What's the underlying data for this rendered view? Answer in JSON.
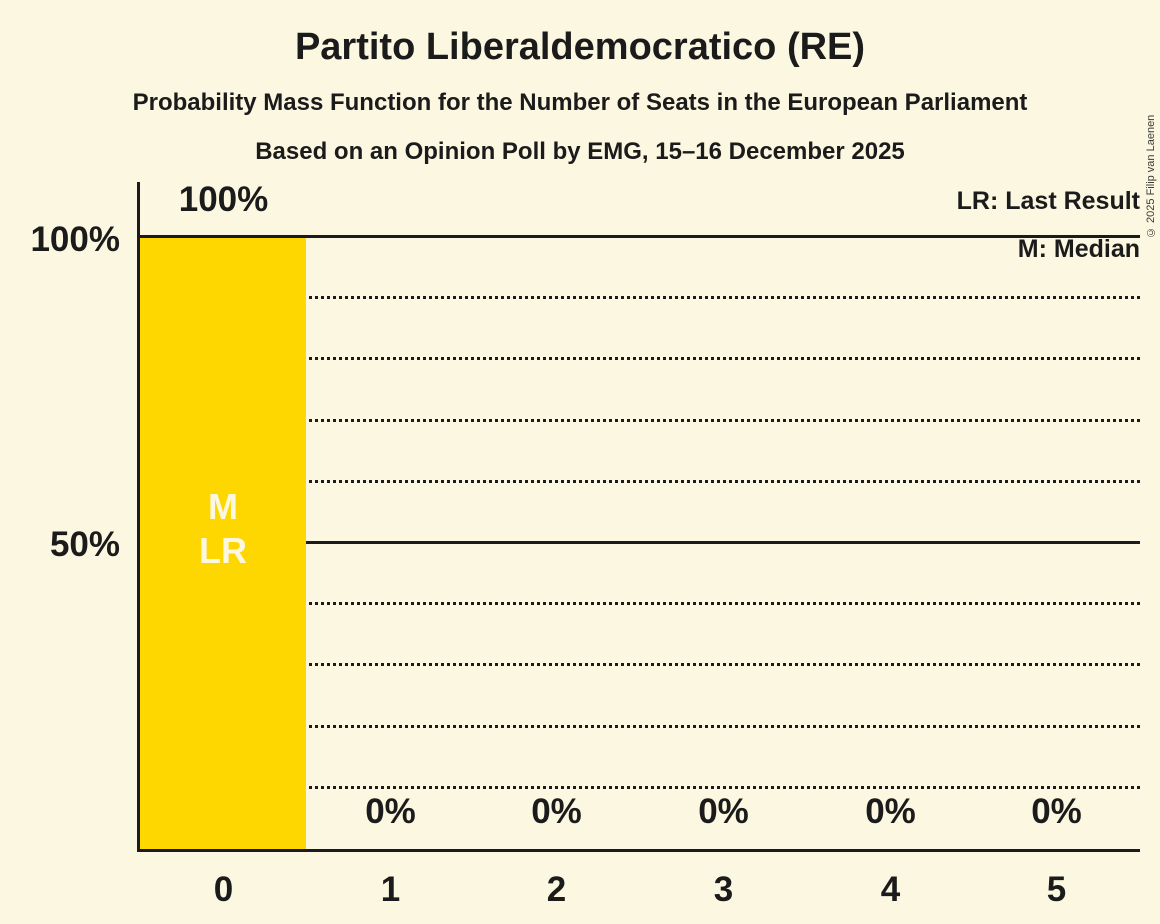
{
  "copyright": "© 2025 Filip van Laenen",
  "chart_data": {
    "type": "bar",
    "title": "Partito Liberaldemocratico (RE)",
    "subtitle": "Probability Mass Function for the Number of Seats in the European Parliament",
    "poll_info": "Based on an Opinion Poll by EMG, 15–16 December 2025",
    "categories": [
      "0",
      "1",
      "2",
      "3",
      "4",
      "5"
    ],
    "values": [
      100,
      0,
      0,
      0,
      0,
      0
    ],
    "value_labels": [
      "100%",
      "0%",
      "0%",
      "0%",
      "0%",
      "0%"
    ],
    "ylim": [
      0,
      100
    ],
    "yticks": [
      100,
      50
    ],
    "ytick_labels": [
      "100%",
      "50%"
    ],
    "gridline_interval_percent": 10,
    "solid_gridlines_percent": [
      100,
      50
    ],
    "legend": [
      "LR: Last Result",
      "M: Median"
    ],
    "legend_position": "top-right",
    "bar_annotations": {
      "seat": "0",
      "median_marker": "M",
      "last_result_marker": "LR"
    },
    "colors": {
      "bar": "#FFD700",
      "background": "#FBF7E1",
      "text": "#1B1B1B",
      "bar_marker_text": "#FBF7E1"
    }
  }
}
